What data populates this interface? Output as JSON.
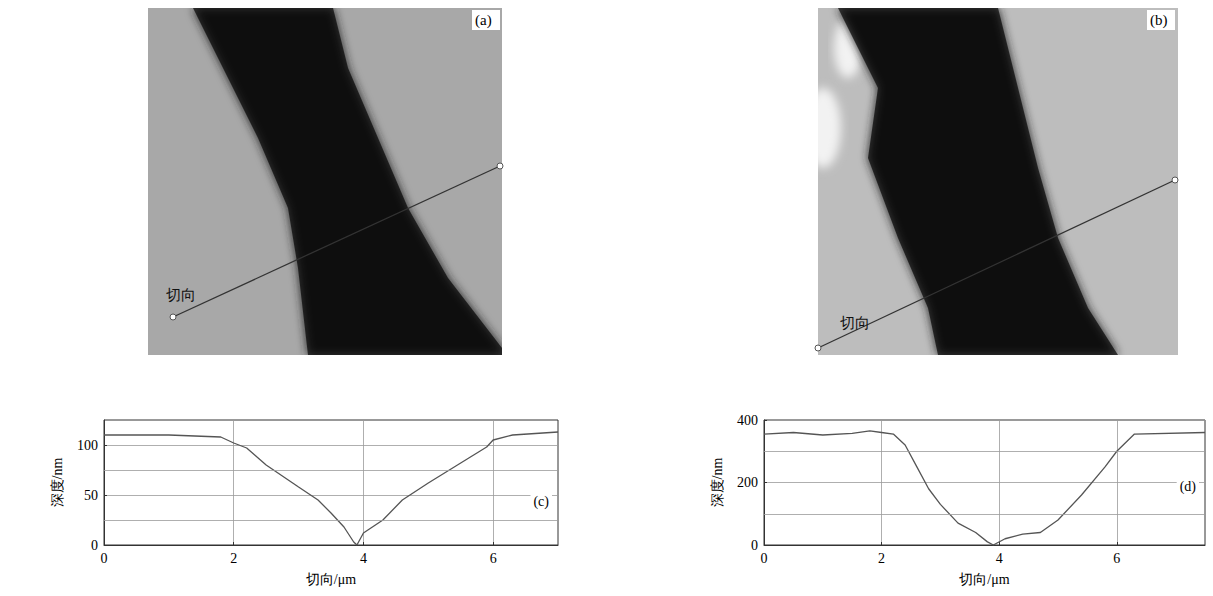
{
  "images": [
    {
      "label": "(a)",
      "line_label": "切向"
    },
    {
      "label": "(b)",
      "line_label": "切向"
    }
  ],
  "chart_data": [
    {
      "type": "line",
      "annotation": "(c)",
      "x_label": "切向/μm",
      "y_label": "深度/nm",
      "color": "#555555",
      "grid": true,
      "xlim": [
        0,
        7
      ],
      "xticks": [
        0,
        2,
        4,
        6
      ],
      "ylim": [
        0,
        125
      ],
      "yticks": [
        0,
        50,
        100
      ],
      "x": [
        0,
        1,
        1.8,
        2.0,
        2.2,
        2.5,
        3.0,
        3.3,
        3.5,
        3.7,
        3.85,
        3.9,
        4.0,
        4.3,
        4.6,
        5.0,
        5.5,
        5.9,
        6.0,
        6.3,
        7.0
      ],
      "values": [
        110,
        110,
        108,
        102,
        97,
        80,
        58,
        45,
        32,
        18,
        3,
        0,
        12,
        25,
        45,
        62,
        82,
        98,
        105,
        110,
        113
      ]
    },
    {
      "type": "line",
      "annotation": "(d)",
      "x_label": "切向/μm",
      "y_label": "深度/nm",
      "color": "#555555",
      "grid": true,
      "xlim": [
        0,
        7.5
      ],
      "xticks": [
        0,
        2,
        4,
        6
      ],
      "ylim": [
        0,
        400
      ],
      "yticks": [
        0,
        200,
        400
      ],
      "x": [
        0,
        0.5,
        1.0,
        1.5,
        1.8,
        2.0,
        2.2,
        2.4,
        2.6,
        2.8,
        3.0,
        3.3,
        3.6,
        3.8,
        3.9,
        4.1,
        4.4,
        4.7,
        5.0,
        5.4,
        5.8,
        6.0,
        6.3,
        7.5
      ],
      "values": [
        355,
        360,
        352,
        357,
        365,
        360,
        355,
        320,
        250,
        180,
        130,
        70,
        40,
        10,
        0,
        20,
        35,
        40,
        80,
        160,
        250,
        300,
        355,
        360
      ]
    }
  ]
}
